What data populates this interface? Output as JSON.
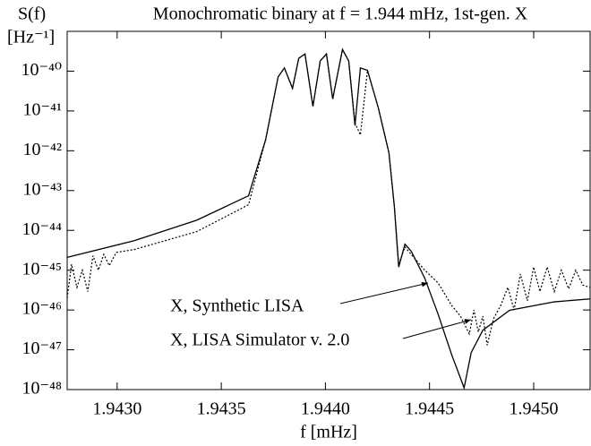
{
  "chart_data": {
    "type": "line",
    "title": "Monochromatic binary at f = 1.944 mHz, 1st-gen. X",
    "ylabel": "S(f)",
    "yunit": "[Hz⁻¹]",
    "xlabel": "f [mHz]",
    "yscale": "log",
    "xlim": [
      1.94276,
      1.945271
    ],
    "ylim": [
      1e-48,
      1e-39
    ],
    "xticks": [
      {
        "value": 1.943,
        "label": "1.9430"
      },
      {
        "value": 1.9435,
        "label": "1.9435"
      },
      {
        "value": 1.944,
        "label": "1.9440"
      },
      {
        "value": 1.9445,
        "label": "1.9445"
      },
      {
        "value": 1.945,
        "label": "1.9450"
      }
    ],
    "yticks": [
      {
        "value": 1e-48,
        "label": "10⁻⁴⁸"
      },
      {
        "value": 1e-47,
        "label": "10⁻⁴⁷"
      },
      {
        "value": 1e-46,
        "label": "10⁻⁴⁶"
      },
      {
        "value": 1e-45,
        "label": "10⁻⁴⁵"
      },
      {
        "value": 1e-44,
        "label": "10⁻⁴⁴"
      },
      {
        "value": 1e-43,
        "label": "10⁻⁴³"
      },
      {
        "value": 1e-42,
        "label": "10⁻⁴²"
      },
      {
        "value": 1e-41,
        "label": "10⁻⁴¹"
      },
      {
        "value": 1e-40,
        "label": "10⁻⁴⁰"
      }
    ],
    "series": [
      {
        "name": "X, Synthetic LISA",
        "color": "#000000",
        "style": "solid",
        "x": [
          1.94276,
          1.943082,
          1.943382,
          1.943631,
          1.943713,
          1.943773,
          1.943803,
          1.943842,
          1.943872,
          1.943902,
          1.94394,
          1.943975,
          1.944005,
          1.944035,
          1.944082,
          1.944112,
          1.944142,
          1.944168,
          1.944202,
          1.944254,
          1.944305,
          1.944331,
          1.944352,
          1.944382,
          1.944412,
          1.944477,
          1.944541,
          1.944606,
          1.944666,
          1.9447,
          1.944756,
          1.944884,
          1.945099,
          1.945271
        ],
        "values": [
          2.1e-45,
          5.5e-45,
          1.8e-44,
          7.4e-44,
          1.9e-42,
          7.2e-41,
          1.2e-40,
          3.7e-41,
          2.1e-40,
          2.7e-40,
          1.3e-41,
          1.8e-40,
          2.7e-40,
          2e-41,
          3.5e-40,
          1.8e-40,
          4.3e-42,
          1.2e-40,
          1.05e-40,
          1.2e-41,
          8.9e-43,
          4e-44,
          1.2e-45,
          4.5e-45,
          3e-45,
          6.3e-46,
          7.9e-47,
          7.6e-48,
          1.1e-48,
          8.5e-48,
          3.1e-47,
          9.8e-47,
          1.6e-46,
          1.9e-46
        ]
      },
      {
        "name": "X, LISA Simulator v. 2.0",
        "color": "#000000",
        "style": "dotted",
        "x": [
          1.94276,
          1.942781,
          1.942807,
          1.942833,
          1.942859,
          1.942884,
          1.94291,
          1.942936,
          1.942962,
          1.942996,
          1.943082,
          1.943382,
          1.943631,
          1.943713,
          1.943773,
          1.943803,
          1.943842,
          1.943872,
          1.943902,
          1.94394,
          1.943975,
          1.944005,
          1.944035,
          1.944082,
          1.944112,
          1.944142,
          1.944168,
          1.944202,
          1.944254,
          1.944305,
          1.944331,
          1.944352,
          1.944382,
          1.944412,
          1.944477,
          1.944541,
          1.944606,
          1.944648,
          1.944691,
          1.944713,
          1.944734,
          1.944756,
          1.944777,
          1.944807,
          1.944842,
          1.944876,
          1.944906,
          1.944936,
          1.94497,
          1.945,
          1.94503,
          1.945065,
          1.945099,
          1.945133,
          1.945168,
          1.945202,
          1.945236,
          1.945271
        ],
        "values": [
          2e-46,
          1.4e-45,
          3.7e-46,
          1e-45,
          2.9e-46,
          2.3e-45,
          1e-45,
          2.5e-45,
          1.3e-45,
          2.8e-45,
          3.3e-45,
          9.3e-45,
          4.4e-44,
          1.9e-42,
          7.2e-41,
          1.2e-40,
          3.7e-41,
          2.1e-40,
          2.7e-40,
          1.3e-41,
          1.8e-40,
          2.7e-40,
          2e-41,
          3.5e-40,
          1.8e-40,
          5e-42,
          2.5e-42,
          1.05e-40,
          1.2e-41,
          8.9e-43,
          4e-44,
          1.4e-45,
          3.8e-45,
          2.5e-45,
          1e-45,
          4.8e-46,
          1.3e-46,
          7.1e-47,
          2.5e-47,
          1e-46,
          2.8e-47,
          7e-47,
          1.3e-47,
          6e-47,
          1.3e-46,
          3.7e-46,
          1e-46,
          8e-46,
          1.7e-46,
          1.2e-45,
          2.9e-46,
          1.2e-45,
          2.9e-46,
          1e-45,
          3.4e-46,
          1e-45,
          4.2e-46,
          3.7e-46
        ]
      }
    ]
  }
}
